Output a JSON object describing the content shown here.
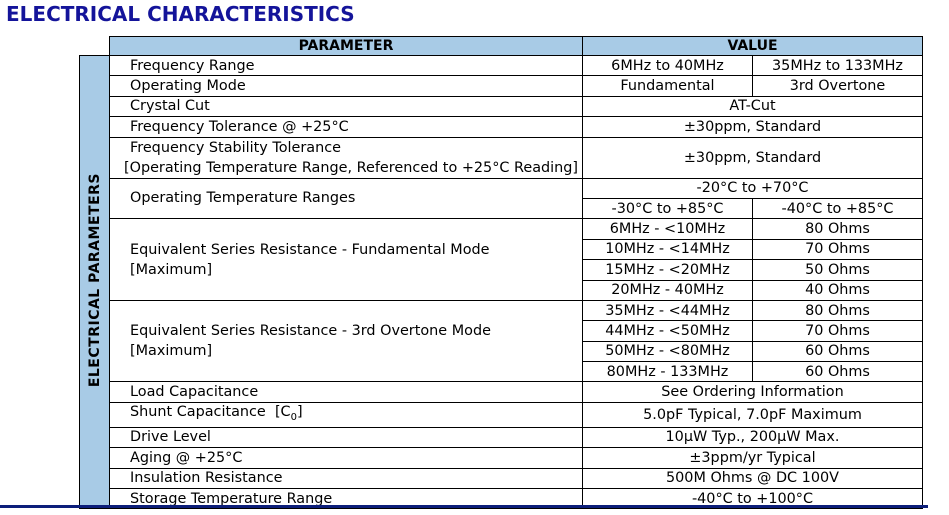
{
  "title": "ELECTRICAL CHARACTERISTICS",
  "side_label": "ELECTRICAL PARAMETERS",
  "headers": {
    "parameter": "PARAMETER",
    "value": "VALUE"
  },
  "rows": {
    "frequency_range": {
      "label": "Frequency Range",
      "v1": "6MHz to 40MHz",
      "v2": "35MHz to 133MHz"
    },
    "operating_mode": {
      "label": "Operating Mode",
      "v1": "Fundamental",
      "v2": "3rd Overtone"
    },
    "crystal_cut": {
      "label": "Crystal Cut",
      "value": "AT-Cut"
    },
    "frequency_tolerance": {
      "label": "Frequency Tolerance @ +25°C",
      "value": "±30ppm, Standard"
    },
    "frequency_stability": {
      "label1": "Frequency Stability Tolerance",
      "label2": "[Operating Temperature Range, Referenced to +25°C Reading]",
      "value": "±30ppm, Standard"
    },
    "operating_temp": {
      "label": "Operating Temperature Ranges",
      "v_top": "-20°C to +70°C",
      "v1": "-30°C to +85°C",
      "v2": "-40°C to +85°C"
    },
    "esr_fundamental": {
      "label1": "Equivalent Series Resistance - Fundamental Mode",
      "label2": "[Maximum]",
      "items": [
        {
          "range": "6MHz - <10MHz",
          "ohms": "80 Ohms"
        },
        {
          "range": "10MHz - <14MHz",
          "ohms": "70 Ohms"
        },
        {
          "range": "15MHz - <20MHz",
          "ohms": "50 Ohms"
        },
        {
          "range": "20MHz - 40MHz",
          "ohms": "40 Ohms"
        }
      ]
    },
    "esr_overtone": {
      "label1": "Equivalent Series Resistance - 3rd Overtone Mode",
      "label2": "[Maximum]",
      "items": [
        {
          "range": "35MHz - <44MHz",
          "ohms": "80 Ohms"
        },
        {
          "range": "44MHz - <50MHz",
          "ohms": "70 Ohms"
        },
        {
          "range": "50MHz - <80MHz",
          "ohms": "60 Ohms"
        },
        {
          "range": "80MHz - 133MHz",
          "ohms": "60 Ohms"
        }
      ]
    },
    "load_capacitance": {
      "label": "Load Capacitance",
      "value": "See Ordering Information"
    },
    "shunt_capacitance": {
      "label_main": "Shunt Capacitance  [C",
      "label_sub": "0",
      "label_end": "]",
      "value": "5.0pF Typical, 7.0pF Maximum"
    },
    "drive_level": {
      "label": "Drive Level",
      "value": "10µW Typ., 200µW Max."
    },
    "aging": {
      "label": "Aging @ +25°C",
      "value": "±3ppm/yr Typical"
    },
    "insulation": {
      "label": "Insulation Resistance",
      "value": "500M Ohms @ DC 100V"
    },
    "storage_temp": {
      "label": "Storage Temperature Range",
      "value": "-40°C to +100°C"
    }
  }
}
